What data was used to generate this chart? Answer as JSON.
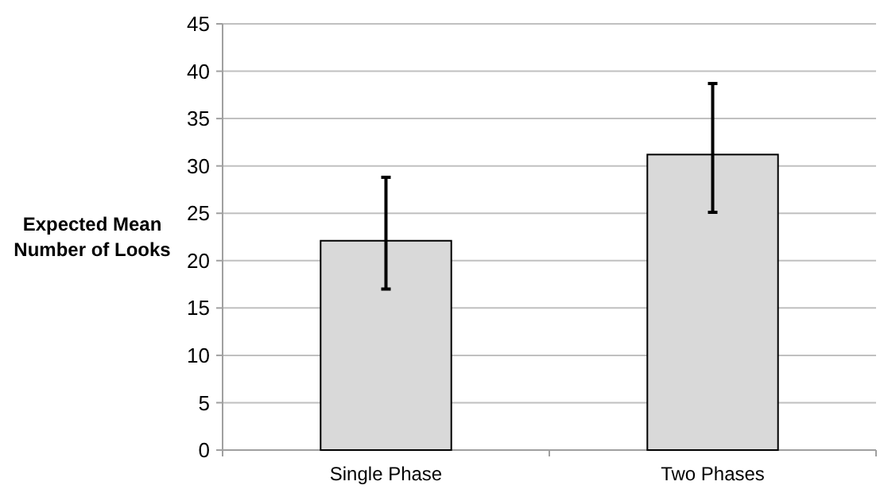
{
  "chart_data": {
    "type": "bar",
    "ylabel": "Expected Mean Number of Looks",
    "categories": [
      "Single Phase",
      "Two Phases"
    ],
    "values": [
      22.1,
      31.2
    ],
    "errors": [
      [
        17,
        28.8
      ],
      [
        25.1,
        38.7
      ]
    ],
    "color": "#d9d9d9",
    "ylim": [
      0,
      45
    ],
    "yticks": [
      0,
      5,
      10,
      15,
      20,
      25,
      30,
      35,
      40,
      45
    ],
    "grid": "y"
  }
}
